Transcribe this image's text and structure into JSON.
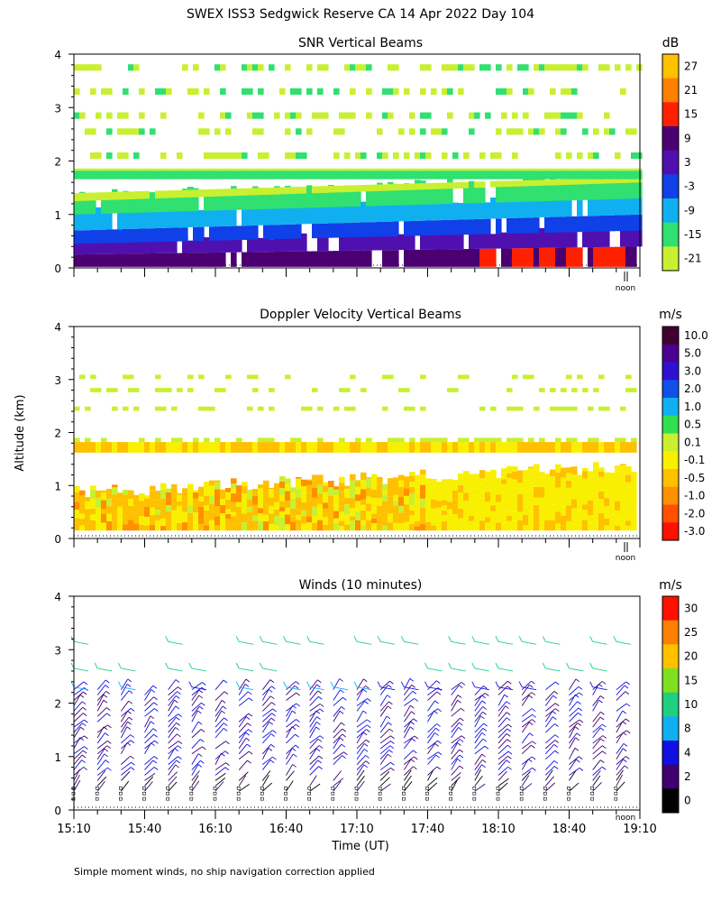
{
  "figure": {
    "title": "SWEX ISS3 Sedgwick Reserve CA  14 Apr 2022 Day 104",
    "ylabel": "Altitude (km)",
    "xlabel": "Time (UT)",
    "footnote": "Simple moment winds, no ship navigation correction applied",
    "noon_label": "noon",
    "x_ticks": [
      "15:10",
      "15:40",
      "16:10",
      "16:40",
      "17:10",
      "17:40",
      "18:10",
      "18:40",
      "19:10"
    ],
    "y_ticks": [
      "0",
      "1",
      "2",
      "3",
      "4"
    ]
  },
  "chart_data": [
    {
      "type": "heatmap",
      "title": "SNR Vertical Beams",
      "unit": "dB",
      "xlim": [
        "15:10",
        "19:10"
      ],
      "ylim": [
        0,
        4
      ],
      "colorbar_labels": [
        "27",
        "21",
        "15",
        "9",
        "3",
        "-3",
        "-9",
        "-15",
        "-21"
      ],
      "colorbar_colors": [
        "#ffc000",
        "#ff8000",
        "#ff2000",
        "#4a0070",
        "#5010b0",
        "#1040e8",
        "#10b0f0",
        "#30e070",
        "#c8f030"
      ],
      "layers": [
        {
          "name": "-21",
          "alt": [
            2.3,
            2.8,
            3.2,
            3.7
          ],
          "color": "#c8f030"
        },
        {
          "name": "-15",
          "alt": [
            1.7,
            1.8,
            2.1,
            2.6
          ],
          "color": "#30e070"
        },
        {
          "name": "-9",
          "alt": [
            0.9,
            1.0,
            1.2
          ],
          "color": "#10b0f0"
        },
        {
          "name": "-3",
          "alt": [
            0.3,
            0.6
          ],
          "color": "#1040e8"
        },
        {
          "name": "3",
          "alt": [
            0.2,
            0.4
          ],
          "color": "#5010b0"
        },
        {
          "name": "15",
          "alt": [
            0.15,
            0.25
          ],
          "color": "#ff2000"
        }
      ]
    },
    {
      "type": "heatmap",
      "title": "Doppler Velocity Vertical Beams",
      "unit": "m/s",
      "xlim": [
        "15:10",
        "19:10"
      ],
      "ylim": [
        0,
        4
      ],
      "colorbar_labels": [
        "10.0",
        "5.0",
        "3.0",
        "2.0",
        "1.0",
        "0.5",
        "0.1",
        "-0.1",
        "-0.5",
        "-1.0",
        "-2.0",
        "-3.0"
      ],
      "colorbar_colors": [
        "#400030",
        "#4a0090",
        "#3010d0",
        "#1050e8",
        "#10b0f0",
        "#30e050",
        "#c8f030",
        "#f8f000",
        "#ffc000",
        "#ff9000",
        "#ff5000",
        "#ff1000"
      ],
      "dominant_values": {
        "below_1.2_km": "-0.1 to -0.5",
        "near_1.7_km": "0.1 to -0.1",
        "above_2_km": "0.1"
      }
    },
    {
      "type": "scatter",
      "title": "Winds (10 minutes)",
      "unit": "m/s",
      "xlim": [
        "15:10",
        "19:10"
      ],
      "ylim": [
        0,
        4
      ],
      "colorbar_labels": [
        "30",
        "25",
        "20",
        "15",
        "10",
        "8",
        "4",
        "2",
        "0"
      ],
      "colorbar_colors": [
        "#ff1000",
        "#ff8000",
        "#ffc000",
        "#80e020",
        "#20d080",
        "#10b0f0",
        "#1010e0",
        "#400070",
        "#000000"
      ],
      "x": [
        "15:10",
        "15:20",
        "15:30",
        "15:40",
        "15:50",
        "16:00",
        "16:10",
        "16:20",
        "16:30",
        "16:40",
        "16:50",
        "17:00",
        "17:10",
        "17:20",
        "17:30",
        "17:40",
        "17:50",
        "18:00",
        "18:10",
        "18:20",
        "18:30",
        "18:40",
        "18:50",
        "19:00"
      ]
    }
  ]
}
